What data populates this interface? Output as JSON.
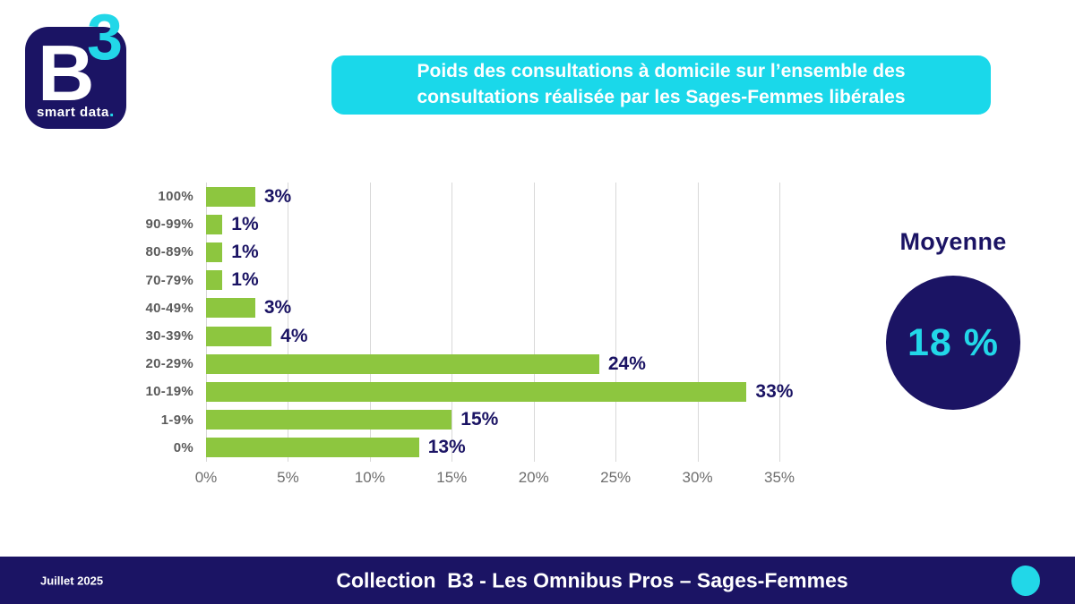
{
  "logo": {
    "letter_b": "B",
    "digit_3": "3",
    "tagline": "smart data",
    "dot": "."
  },
  "title_banner": {
    "text": "Poids des consultations à domicile sur l’ensemble des consultations réalisée par les Sages-Femmes libérales"
  },
  "chart_data": {
    "type": "bar",
    "orientation": "horizontal",
    "categories": [
      "100%",
      "90-99%",
      "80-89%",
      "70-79%",
      "40-49%",
      "30-39%",
      "20-29%",
      "10-19%",
      "1-9%",
      "0%"
    ],
    "values": [
      3,
      1,
      1,
      1,
      3,
      4,
      24,
      33,
      15,
      13
    ],
    "value_labels": [
      "3%",
      "1%",
      "1%",
      "1%",
      "3%",
      "4%",
      "24%",
      "33%",
      "15%",
      "13%"
    ],
    "x_ticks": [
      {
        "value": 0,
        "label": "0%"
      },
      {
        "value": 5,
        "label": "5%"
      },
      {
        "value": 10,
        "label": "10%"
      },
      {
        "value": 15,
        "label": "15%"
      },
      {
        "value": 20,
        "label": "20%"
      },
      {
        "value": 25,
        "label": "25%"
      },
      {
        "value": 30,
        "label": "30%"
      },
      {
        "value": 35,
        "label": "35%"
      }
    ],
    "xlim": [
      0,
      35
    ],
    "grid": true,
    "bar_color": "#8DC63F",
    "value_label_color": "#1B1464",
    "category_label_color": "#5A5A5A"
  },
  "average": {
    "label": "Moyenne",
    "value": "18 %"
  },
  "footer": {
    "date": "Juillet 2025",
    "title": "Collection  B3 - Les Omnibus Pros – Sages-Femmes"
  },
  "colors": {
    "navy": "#1B1464",
    "cyan": "#22D7E8",
    "banner_cyan": "#1AD8EA",
    "green": "#8DC63F",
    "gridline": "#D8D8D8"
  }
}
